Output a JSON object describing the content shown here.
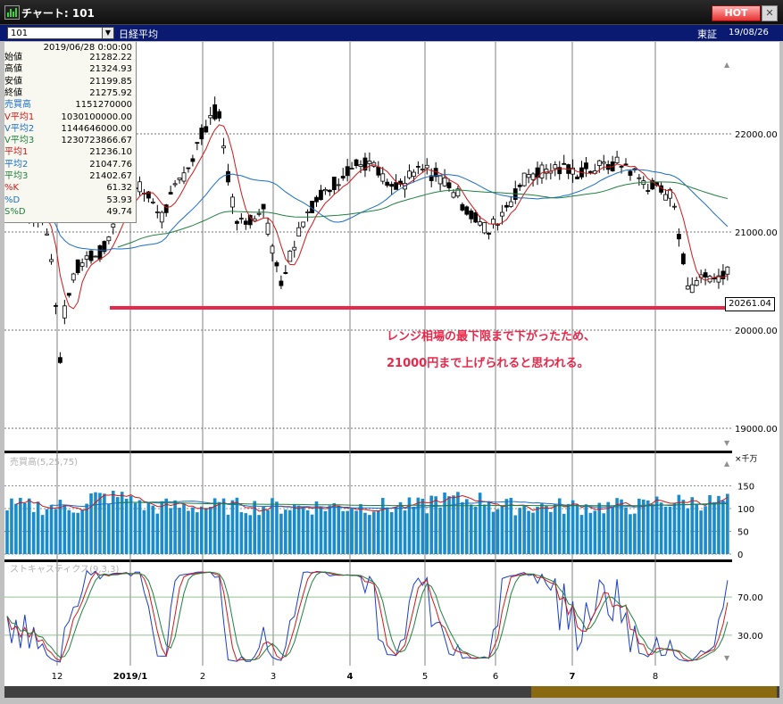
{
  "window": {
    "title": "チャート: 101",
    "hot_label": "HOT",
    "close_label": "✕"
  },
  "toolbar": {
    "symbol": "101",
    "index_name": "日経平均",
    "market": "東証",
    "date": "19/08/26"
  },
  "info": {
    "date": "2019/06/28 0:00:00",
    "rows": [
      {
        "label": "始値",
        "value": "21282.22",
        "color": "#000000"
      },
      {
        "label": "高値",
        "value": "21324.93",
        "color": "#000000"
      },
      {
        "label": "安値",
        "value": "21199.85",
        "color": "#000000"
      },
      {
        "label": "終値",
        "value": "21275.92",
        "color": "#000000"
      },
      {
        "label": "売買高",
        "value": "1151270000",
        "color": "#1a6ec8"
      },
      {
        "label": "V平均1",
        "value": "1030100000.00",
        "color": "#d01818"
      },
      {
        "label": "V平均2",
        "value": "1144646000.00",
        "color": "#1a6ec8"
      },
      {
        "label": "V平均3",
        "value": "1230723866.67",
        "color": "#208040"
      },
      {
        "label": "平均1",
        "value": "21236.10",
        "color": "#d01818"
      },
      {
        "label": "平均2",
        "value": "21047.76",
        "color": "#1a6ec8"
      },
      {
        "label": "平均3",
        "value": "21402.67",
        "color": "#208040"
      },
      {
        "label": "%K",
        "value": "61.32",
        "color": "#d01818"
      },
      {
        "label": "%D",
        "value": "53.93",
        "color": "#1a6ec8"
      },
      {
        "label": "S%D",
        "value": "49.74",
        "color": "#208040"
      }
    ]
  },
  "annotation": {
    "line1": "レンジ相場の最下限まで下がったため、",
    "line2": "21000円まで上げられると思われる。"
  },
  "price_tag": "20261.04",
  "price_axis": [
    "22000.00",
    "21000.00",
    "20000.00",
    "19000.00"
  ],
  "volume_axis": {
    "unit": "×千万",
    "ticks": [
      "150",
      "100",
      "50",
      "0"
    ],
    "label": "売買高(5,25,75)"
  },
  "stoch_axis": {
    "ticks": [
      "70.00",
      "30.00"
    ],
    "label": "ストキャスティクス(9,3,3)"
  },
  "x_axis": [
    "12",
    "2019/1",
    "2",
    "3",
    "4",
    "5",
    "6",
    "7",
    "8"
  ],
  "colors": {
    "accent": "#e8284a",
    "candle_up": "#ffffff",
    "candle_down": "#000000",
    "ma1": "#d01818",
    "ma2": "#1a6ec8",
    "ma3": "#208040",
    "volume": "#1a8ccc"
  }
}
